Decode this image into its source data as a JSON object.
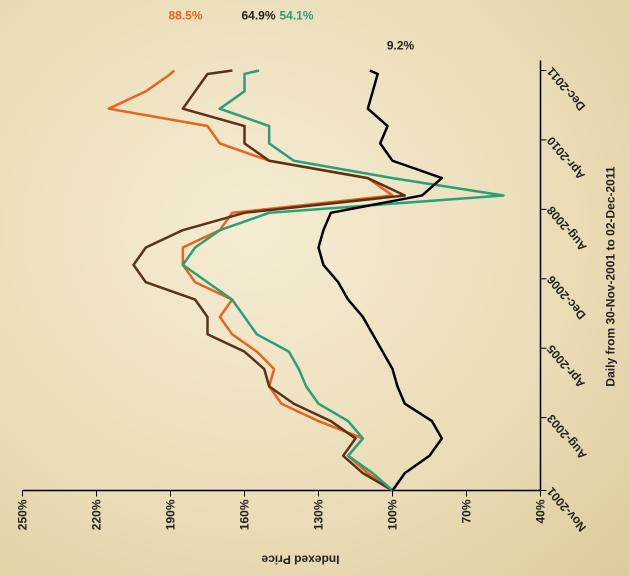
{
  "chart_data": {
    "type": "line",
    "subtitle": "Daily from 30-Nov-2001 to 02-Dec-2011",
    "y_label": "Indexed Price",
    "x": [
      "2001-11",
      "2002-04",
      "2002-09",
      "2003-02",
      "2003-07",
      "2003-12",
      "2004-05",
      "2004-10",
      "2005-03",
      "2005-08",
      "2006-01",
      "2006-06",
      "2006-11",
      "2007-04",
      "2007-09",
      "2008-02",
      "2008-07",
      "2008-12",
      "2009-05",
      "2009-10",
      "2010-03",
      "2010-08",
      "2011-01",
      "2011-06",
      "2011-11",
      "2011-12"
    ],
    "xlim": [
      "2001-11",
      "2011-12"
    ],
    "xticks": [
      {
        "value": "2001-11",
        "label": "Nov-2001"
      },
      {
        "value": "2003-08",
        "label": "Aug-2003"
      },
      {
        "value": "2005-04",
        "label": "Apr-2005"
      },
      {
        "value": "2006-12",
        "label": "Dec-2006"
      },
      {
        "value": "2008-08",
        "label": "Aug-2008"
      },
      {
        "value": "2010-04",
        "label": "Apr-2010"
      },
      {
        "value": "2011-12",
        "label": "Dec-2011"
      }
    ],
    "ylim": [
      40,
      250
    ],
    "yticks": [
      {
        "value": 40,
        "label": "40%"
      },
      {
        "value": 70,
        "label": "70%"
      },
      {
        "value": 100,
        "label": "100%"
      },
      {
        "value": 130,
        "label": "130%"
      },
      {
        "value": 160,
        "label": "160%"
      },
      {
        "value": 190,
        "label": "190%"
      },
      {
        "value": 220,
        "label": "220%"
      },
      {
        "value": 250,
        "label": "250%"
      }
    ],
    "series": [
      {
        "color": "#e8641e",
        "values": [
          100,
          110,
          118,
          112,
          130,
          145,
          150,
          148,
          155,
          165,
          170,
          165,
          180,
          185,
          185,
          170,
          165,
          100,
          110,
          150,
          170,
          175,
          215,
          200,
          190,
          188.5
        ]
      },
      {
        "color": "#5a3218",
        "values": [
          100,
          112,
          120,
          115,
          125,
          140,
          150,
          152,
          160,
          175,
          175,
          180,
          200,
          205,
          200,
          185,
          160,
          95,
          110,
          150,
          160,
          160,
          185,
          180,
          175,
          164.9
        ]
      },
      {
        "color": "#2a9f78",
        "values": [
          100,
          108,
          118,
          112,
          118,
          130,
          135,
          138,
          142,
          155,
          160,
          165,
          175,
          185,
          180,
          170,
          150,
          55,
          100,
          140,
          150,
          150,
          170,
          160,
          160,
          154.1
        ]
      },
      {
        "color": "#000000",
        "values": [
          100,
          95,
          85,
          80,
          84,
          95,
          98,
          100,
          104,
          108,
          112,
          118,
          122,
          128,
          130,
          128,
          125,
          88,
          80,
          100,
          105,
          102,
          110,
          108,
          106,
          109.2
        ]
      }
    ],
    "annotations": [
      {
        "text": "88.5%",
        "color": "#e8641e"
      },
      {
        "text": "64.9%",
        "color": "#222222"
      },
      {
        "text": "54.1%",
        "color": "#2a9f78"
      },
      {
        "text": "9.2%",
        "color": "#222222"
      }
    ]
  }
}
